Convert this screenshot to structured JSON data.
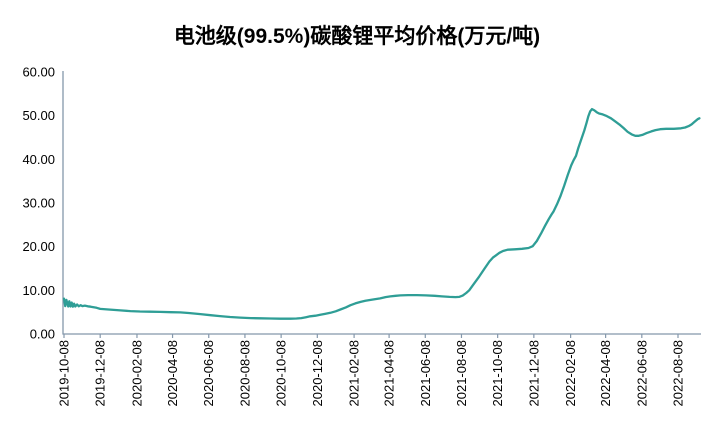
{
  "chart_data": {
    "type": "line",
    "title": "电池级(99.5%)碳酸锂平均价格(万元/吨)",
    "unit": "万元/吨",
    "ylim": [
      0,
      60
    ],
    "y_tick_labels": [
      "0.00",
      "10.00",
      "20.00",
      "30.00",
      "40.00",
      "50.00",
      "60.00"
    ],
    "x_tick_labels": [
      "2019-10-08",
      "2019-12-08",
      "2020-02-08",
      "2020-04-08",
      "2020-06-08",
      "2020-08-08",
      "2020-10-08",
      "2020-12-08",
      "2021-02-08",
      "2021-04-08",
      "2021-06-08",
      "2021-08-08",
      "2021-10-08",
      "2021-12-08",
      "2022-02-08",
      "2022-04-08",
      "2022-06-08",
      "2022-08-08"
    ],
    "start_date": "2019-10-08",
    "grid": "off",
    "legend": "none",
    "line_color": "#2F9E96",
    "axis_color": "#8497AB",
    "text_color": "#000000",
    "background_color": "#FFFFFF",
    "points_format": [
      "days_since_start_date",
      "price_wan_yuan_per_ton"
    ],
    "points": [
      [
        0,
        8.1
      ],
      [
        2,
        6.4
      ],
      [
        4,
        7.8
      ],
      [
        7,
        6.3
      ],
      [
        9,
        7.5
      ],
      [
        11,
        6.3
      ],
      [
        13,
        7.2
      ],
      [
        15,
        6.25
      ],
      [
        17,
        6.95
      ],
      [
        19,
        6.3
      ],
      [
        22,
        6.75
      ],
      [
        25,
        6.35
      ],
      [
        28,
        6.6
      ],
      [
        31,
        6.4
      ],
      [
        35,
        6.5
      ],
      [
        40,
        6.35
      ],
      [
        45,
        6.25
      ],
      [
        55,
        6.0
      ],
      [
        61,
        5.75
      ],
      [
        75,
        5.6
      ],
      [
        95,
        5.4
      ],
      [
        112,
        5.25
      ],
      [
        128,
        5.15
      ],
      [
        145,
        5.1
      ],
      [
        162,
        5.05
      ],
      [
        180,
        5.0
      ],
      [
        196,
        4.95
      ],
      [
        210,
        4.8
      ],
      [
        230,
        4.55
      ],
      [
        247,
        4.3
      ],
      [
        263,
        4.1
      ],
      [
        280,
        3.9
      ],
      [
        297,
        3.75
      ],
      [
        315,
        3.65
      ],
      [
        331,
        3.6
      ],
      [
        348,
        3.55
      ],
      [
        365,
        3.5
      ],
      [
        382,
        3.5
      ],
      [
        392,
        3.55
      ],
      [
        400,
        3.65
      ],
      [
        408,
        3.85
      ],
      [
        415,
        4.05
      ],
      [
        424,
        4.2
      ],
      [
        432,
        4.4
      ],
      [
        440,
        4.6
      ],
      [
        449,
        4.85
      ],
      [
        458,
        5.2
      ],
      [
        466,
        5.6
      ],
      [
        475,
        6.1
      ],
      [
        483,
        6.6
      ],
      [
        491,
        7.0
      ],
      [
        500,
        7.35
      ],
      [
        508,
        7.6
      ],
      [
        517,
        7.8
      ],
      [
        525,
        8.0
      ],
      [
        533,
        8.15
      ],
      [
        542,
        8.45
      ],
      [
        550,
        8.6
      ],
      [
        559,
        8.75
      ],
      [
        567,
        8.85
      ],
      [
        580,
        8.9
      ],
      [
        595,
        8.9
      ],
      [
        610,
        8.85
      ],
      [
        625,
        8.75
      ],
      [
        637,
        8.6
      ],
      [
        650,
        8.5
      ],
      [
        660,
        8.45
      ],
      [
        666,
        8.5
      ],
      [
        672,
        8.8
      ],
      [
        678,
        9.4
      ],
      [
        683,
        10.0
      ],
      [
        691,
        11.5
      ],
      [
        700,
        13.2
      ],
      [
        709,
        15.0
      ],
      [
        717,
        16.6
      ],
      [
        723,
        17.5
      ],
      [
        728,
        18.0
      ],
      [
        734,
        18.6
      ],
      [
        740,
        19.0
      ],
      [
        748,
        19.3
      ],
      [
        760,
        19.4
      ],
      [
        772,
        19.5
      ],
      [
        783,
        19.7
      ],
      [
        790,
        20.1
      ],
      [
        797,
        21.3
      ],
      [
        804,
        23.0
      ],
      [
        811,
        24.8
      ],
      [
        817,
        26.3
      ],
      [
        822,
        27.4
      ],
      [
        825,
        28.0
      ],
      [
        831,
        29.7
      ],
      [
        837,
        31.6
      ],
      [
        843,
        33.9
      ],
      [
        849,
        36.4
      ],
      [
        855,
        38.6
      ],
      [
        859,
        39.8
      ],
      [
        863,
        40.8
      ],
      [
        867,
        42.6
      ],
      [
        872,
        44.6
      ],
      [
        877,
        46.6
      ],
      [
        881,
        48.4
      ],
      [
        884,
        49.9
      ],
      [
        887,
        51.0
      ],
      [
        890,
        51.5
      ],
      [
        894,
        51.2
      ],
      [
        898,
        50.8
      ],
      [
        902,
        50.5
      ],
      [
        908,
        50.3
      ],
      [
        915,
        49.9
      ],
      [
        922,
        49.4
      ],
      [
        929,
        48.7
      ],
      [
        936,
        48.0
      ],
      [
        943,
        47.2
      ],
      [
        950,
        46.3
      ],
      [
        957,
        45.7
      ],
      [
        963,
        45.4
      ],
      [
        969,
        45.4
      ],
      [
        975,
        45.6
      ],
      [
        982,
        46.0
      ],
      [
        990,
        46.4
      ],
      [
        997,
        46.7
      ],
      [
        1005,
        46.9
      ],
      [
        1015,
        47.0
      ],
      [
        1028,
        47.0
      ],
      [
        1040,
        47.1
      ],
      [
        1047,
        47.3
      ],
      [
        1053,
        47.6
      ],
      [
        1058,
        48.0
      ],
      [
        1063,
        48.6
      ],
      [
        1068,
        49.2
      ],
      [
        1071,
        49.4
      ]
    ]
  }
}
